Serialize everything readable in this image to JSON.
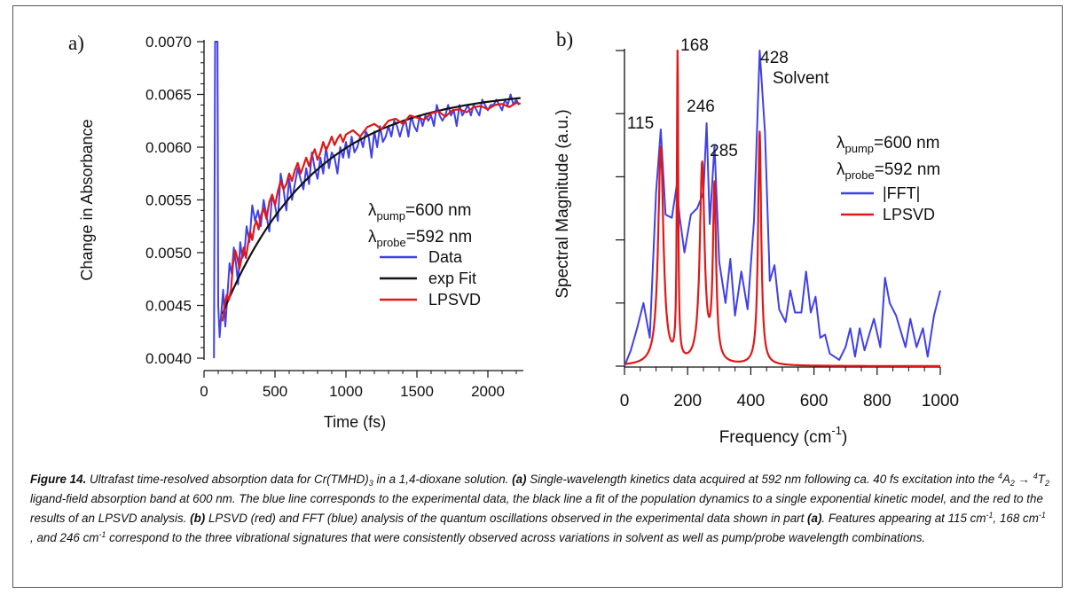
{
  "chart_data": [
    {
      "type": "line",
      "panel_label": "a)",
      "xlabel": "Time (fs)",
      "ylabel": "Change in Absorbance",
      "xlim": [
        0,
        2250
      ],
      "ylim": [
        0.004,
        0.007
      ],
      "x_ticks": [
        0,
        500,
        1000,
        1500,
        2000
      ],
      "y_ticks": [
        "0.0040",
        "0.0045",
        "0.0050",
        "0.0055",
        "0.0060",
        "0.0065",
        "0.0070"
      ],
      "y_tick_values": [
        0.004,
        0.0045,
        0.005,
        0.0055,
        0.006,
        0.0065,
        0.007
      ],
      "annotation_lines": [
        {
          "base": "λ",
          "sub": "pump",
          "rest": "=600 nm"
        },
        {
          "base": "λ",
          "sub": "probe",
          "rest": "=592 nm"
        }
      ],
      "legend_position": "right-middle",
      "series": [
        {
          "name": "Data",
          "color": "#4040e8",
          "x": [
            70,
            78,
            85,
            95,
            100,
            110,
            120,
            135,
            150,
            165,
            180,
            195,
            210,
            225,
            240,
            255,
            270,
            285,
            300,
            320,
            340,
            360,
            380,
            400,
            420,
            440,
            460,
            480,
            500,
            520,
            540,
            560,
            580,
            600,
            620,
            640,
            660,
            680,
            700,
            720,
            740,
            760,
            780,
            800,
            820,
            840,
            860,
            880,
            900,
            920,
            940,
            960,
            980,
            1000,
            1020,
            1040,
            1060,
            1080,
            1100,
            1120,
            1140,
            1160,
            1180,
            1200,
            1220,
            1240,
            1260,
            1280,
            1300,
            1320,
            1340,
            1360,
            1380,
            1400,
            1420,
            1440,
            1460,
            1480,
            1500,
            1520,
            1540,
            1560,
            1580,
            1600,
            1620,
            1640,
            1660,
            1680,
            1700,
            1720,
            1740,
            1760,
            1780,
            1800,
            1820,
            1840,
            1860,
            1880,
            1900,
            1920,
            1940,
            1960,
            1980,
            2000,
            2020,
            2040,
            2060,
            2080,
            2100,
            2120,
            2140,
            2160,
            2180,
            2200,
            2220
          ],
          "y": [
            0.004,
            0.007,
            0.007,
            0.007,
            0.0045,
            0.0042,
            0.0044,
            0.00465,
            0.0043,
            0.0046,
            0.0049,
            0.0048,
            0.00505,
            0.0049,
            0.0047,
            0.0051,
            0.00495,
            0.005,
            0.00525,
            0.0051,
            0.00545,
            0.0053,
            0.0054,
            0.00525,
            0.0055,
            0.00535,
            0.0052,
            0.00555,
            0.00545,
            0.0053,
            0.00575,
            0.0056,
            0.0054,
            0.0057,
            0.0055,
            0.00565,
            0.0058,
            0.0057,
            0.0056,
            0.0058,
            0.00565,
            0.00595,
            0.0058,
            0.0057,
            0.0059,
            0.00575,
            0.006,
            0.0058,
            0.00595,
            0.0059,
            0.00575,
            0.006,
            0.0059,
            0.00605,
            0.0059,
            0.0061,
            0.00595,
            0.006,
            0.0061,
            0.006,
            0.00615,
            0.0061,
            0.0059,
            0.00615,
            0.006,
            0.0062,
            0.00605,
            0.0061,
            0.0062,
            0.0061,
            0.00625,
            0.0062,
            0.0061,
            0.0062,
            0.00625,
            0.0061,
            0.0063,
            0.0062,
            0.00615,
            0.0063,
            0.0062,
            0.0063,
            0.00625,
            0.0063,
            0.0062,
            0.0064,
            0.0063,
            0.00625,
            0.0063,
            0.0064,
            0.0063,
            0.00635,
            0.0062,
            0.0064,
            0.0063,
            0.00635,
            0.0064,
            0.0063,
            0.0064,
            0.00635,
            0.0063,
            0.00645,
            0.0064,
            0.00635,
            0.0064,
            0.0064,
            0.00645,
            0.0064,
            0.00635,
            0.00645,
            0.0064,
            0.0065,
            0.0064,
            0.00645,
            0.0064
          ]
        },
        {
          "name": "exp Fit",
          "color": "#111111",
          "fit": {
            "a": 0.00655,
            "b": 0.00213,
            "tau": 650,
            "t0": 130
          },
          "x": [
            130,
            200,
            300,
            400,
            500,
            600,
            700,
            800,
            900,
            1000,
            1100,
            1200,
            1300,
            1400,
            1500,
            1600,
            1700,
            1800,
            1900,
            2000,
            2100,
            2200,
            2230
          ],
          "y": [
            0.00442,
            0.00465,
            0.00494,
            0.00519,
            0.0054,
            0.00558,
            0.00573,
            0.00585,
            0.00595,
            0.00604,
            0.00611,
            0.00617,
            0.00622,
            0.00626,
            0.0063,
            0.00633,
            0.00635,
            0.00637,
            0.00639,
            0.00641,
            0.00642,
            0.00643,
            0.00644
          ]
        },
        {
          "name": "LPSVD",
          "color": "#e01818",
          "x": [
            130,
            145,
            160,
            175,
            190,
            205,
            220,
            235,
            250,
            265,
            280,
            295,
            310,
            325,
            340,
            355,
            370,
            385,
            400,
            420,
            440,
            460,
            480,
            500,
            520,
            540,
            560,
            580,
            600,
            620,
            640,
            660,
            680,
            700,
            720,
            740,
            760,
            780,
            800,
            820,
            840,
            860,
            880,
            900,
            920,
            940,
            960,
            980,
            1000,
            1050,
            1100,
            1150,
            1200,
            1250,
            1300,
            1350,
            1400,
            1450,
            1500,
            1550,
            1600,
            1650,
            1700,
            1750,
            1800,
            1850,
            1900,
            1950,
            2000,
            2050,
            2100,
            2150,
            2200,
            2230
          ],
          "y": [
            0.00435,
            0.0045,
            0.0046,
            0.00455,
            0.00465,
            0.0049,
            0.00502,
            0.00495,
            0.00485,
            0.00495,
            0.00505,
            0.00495,
            0.00508,
            0.0052,
            0.00512,
            0.00525,
            0.0053,
            0.00522,
            0.00535,
            0.00542,
            0.00532,
            0.00548,
            0.00555,
            0.00545,
            0.00558,
            0.00568,
            0.0056,
            0.00565,
            0.00575,
            0.00568,
            0.00578,
            0.00585,
            0.00575,
            0.00582,
            0.0059,
            0.00582,
            0.00592,
            0.00598,
            0.00588,
            0.00595,
            0.00605,
            0.00597,
            0.00603,
            0.0061,
            0.00602,
            0.00608,
            0.00612,
            0.00605,
            0.00612,
            0.00616,
            0.0061,
            0.00619,
            0.00622,
            0.00617,
            0.00625,
            0.00627,
            0.00622,
            0.0063,
            0.00628,
            0.00626,
            0.00632,
            0.00634,
            0.00629,
            0.00635,
            0.00636,
            0.00633,
            0.00638,
            0.00639,
            0.00636,
            0.0064,
            0.00641,
            0.00638,
            0.00642,
            0.00641
          ]
        }
      ]
    },
    {
      "type": "line",
      "panel_label": "b)",
      "xlabel": "Frequency (cm",
      "xlabel_sup": "-1",
      "xlabel_tail": ")",
      "ylabel": "Spectral Magnitude (a.u.)",
      "xlim": [
        0,
        1000
      ],
      "ylim": [
        0,
        1
      ],
      "x_ticks": [
        0,
        200,
        400,
        600,
        800,
        1000
      ],
      "y_ticks_unlabeled": [
        0,
        0.2,
        0.4,
        0.6,
        0.8,
        1.0
      ],
      "peak_labels": [
        {
          "text": "115",
          "x": 115,
          "y": 0.73
        },
        {
          "text": "168",
          "x": 168,
          "y": 1.0
        },
        {
          "text": "246",
          "x": 246,
          "y": 0.79
        },
        {
          "text": "285",
          "x": 285,
          "y": 0.65
        },
        {
          "text": "428",
          "x": 428,
          "y": 0.98
        },
        {
          "text": "Solvent",
          "x": 428,
          "y": 0.91
        }
      ],
      "annotation_lines": [
        {
          "base": "λ",
          "sub": "pump",
          "rest": "=600 nm"
        },
        {
          "base": "λ",
          "sub": "probe",
          "rest": "=592 nm"
        }
      ],
      "legend_position": "right-middle",
      "series": [
        {
          "name": "|FFT|",
          "color": "#4040e8",
          "x": [
            0,
            20,
            40,
            60,
            80,
            100,
            115,
            130,
            150,
            165,
            175,
            190,
            210,
            230,
            250,
            260,
            270,
            285,
            300,
            320,
            335,
            350,
            370,
            390,
            410,
            428,
            445,
            460,
            475,
            490,
            510,
            525,
            540,
            560,
            575,
            590,
            605,
            620,
            635,
            650,
            665,
            680,
            700,
            715,
            730,
            745,
            760,
            775,
            790,
            810,
            825,
            840,
            860,
            875,
            890,
            905,
            925,
            945,
            960,
            980,
            1000
          ],
          "y": [
            0.0,
            0.05,
            0.12,
            0.2,
            0.09,
            0.55,
            0.75,
            0.48,
            0.47,
            0.57,
            0.47,
            0.36,
            0.48,
            0.5,
            0.55,
            0.77,
            0.45,
            0.7,
            0.33,
            0.2,
            0.34,
            0.16,
            0.3,
            0.18,
            0.46,
            1.0,
            0.74,
            0.27,
            0.32,
            0.18,
            0.14,
            0.24,
            0.17,
            0.17,
            0.3,
            0.17,
            0.22,
            0.09,
            0.1,
            0.04,
            0.03,
            0.02,
            0.06,
            0.12,
            0.03,
            0.12,
            0.05,
            0.1,
            0.15,
            0.06,
            0.28,
            0.2,
            0.16,
            0.11,
            0.06,
            0.15,
            0.06,
            0.12,
            0.03,
            0.16,
            0.24
          ]
        },
        {
          "name": "LPSVD",
          "color": "#e01818",
          "peaks": [
            {
              "center": 115,
              "height": 0.69,
              "width": 10
            },
            {
              "center": 168,
              "height": 1.0,
              "width": 2.5
            },
            {
              "center": 246,
              "height": 0.63,
              "width": 9
            },
            {
              "center": 285,
              "height": 0.55,
              "width": 6
            },
            {
              "center": 428,
              "height": 0.74,
              "width": 6
            }
          ]
        }
      ]
    }
  ],
  "caption": {
    "label": "Figure 14.",
    "segments": [
      {
        "t": " Ultrafast time-resolved absorption data for Cr(TMHD)"
      },
      {
        "sub": "3"
      },
      {
        "t": " in a 1,4-dioxane solution. "
      },
      {
        "b": "(a)"
      },
      {
        "t": " Single-wavelength kinetics data acquired at 592 nm following ca. 40 fs excitation into the "
      },
      {
        "sup": "4"
      },
      {
        "t": "A"
      },
      {
        "sub": "2"
      },
      {
        "t": " → "
      },
      {
        "sup": "4"
      },
      {
        "t": "T"
      },
      {
        "sub": "2"
      },
      {
        "t": " ligand-field absorption band at 600 nm. The blue line corresponds to the experimental data, the black line a fit of the population dynamics to a single exponential kinetic model, and the red to the results of an LPSVD analysis. "
      },
      {
        "b": "(b)"
      },
      {
        "t": " LPSVD (red) and FFT (blue) analysis of the quantum oscillations observed in the experimental data shown in part "
      },
      {
        "b": "(a)"
      },
      {
        "t": ". Features appearing at 115 cm"
      },
      {
        "sup": "-1"
      },
      {
        "t": ", 168 cm"
      },
      {
        "sup": "-1"
      },
      {
        "t": " , and 246 cm"
      },
      {
        "sup": "-1"
      },
      {
        "t": " correspond to the three vibrational signatures that were consistently observed across variations in solvent as well as pump/probe wavelength combinations."
      }
    ]
  }
}
